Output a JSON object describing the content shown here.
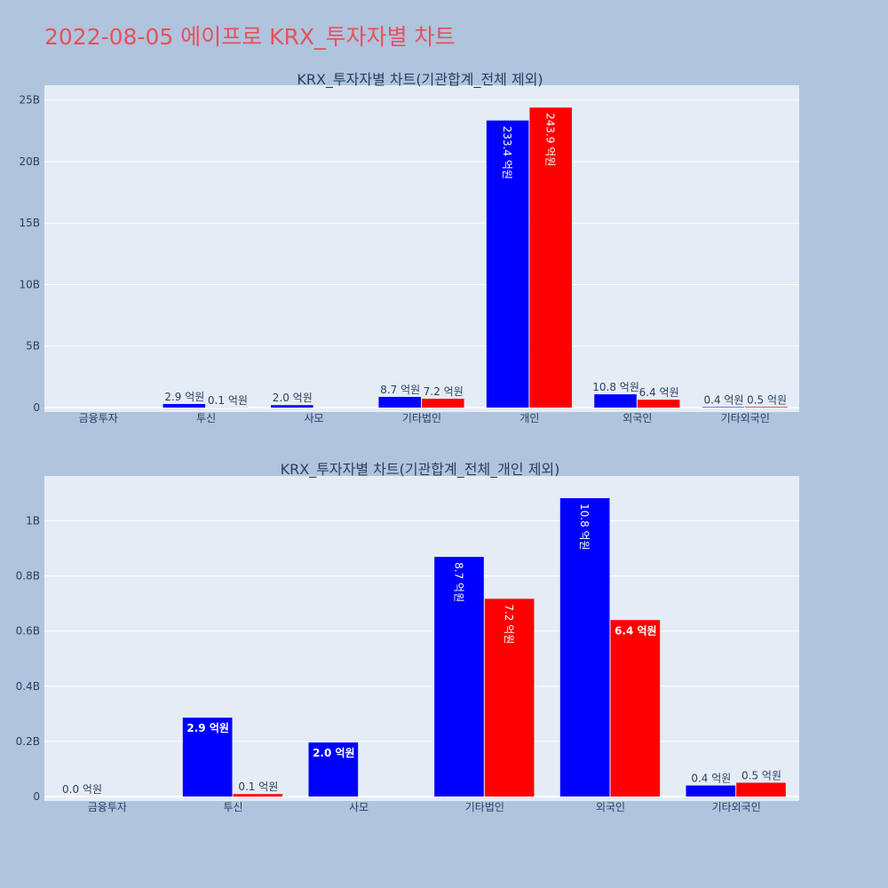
{
  "page_title": "2022-08-05 에이프로 KRX_투자자별 차트",
  "colors": {
    "background": "#b0c4de",
    "plot_bg": "#e5ecf6",
    "title": "#e8505b",
    "series_a": "#0000ff",
    "series_b": "#ff0000"
  },
  "chart_data": [
    {
      "type": "bar",
      "title": "KRX_투자자별 차트(기관합계_전체 제외)",
      "categories": [
        "금융투자",
        "투신",
        "사모",
        "기타법인",
        "개인",
        "외국인",
        "기타외국인"
      ],
      "ylim": [
        0,
        25.7
      ],
      "y_ticks": [
        0,
        5,
        10,
        15,
        20,
        25
      ],
      "y_tick_labels": [
        "0",
        "5B",
        "10B",
        "15B",
        "20B",
        "25B"
      ],
      "grid": true,
      "legend": "none",
      "series": [
        {
          "color": "#0000ff",
          "values": [
            0,
            0.29,
            0.2,
            0.87,
            23.34,
            1.08,
            0.04
          ],
          "labels": [
            "",
            "2.9 억원",
            "2.0 억원",
            "8.7 억원",
            "233.4 억원",
            "10.8 억원",
            "0.4 억원"
          ]
        },
        {
          "color": "#ff0000",
          "values": [
            0,
            0.01,
            0,
            0.72,
            24.39,
            0.64,
            0.05
          ],
          "labels": [
            "",
            "0.1 억원",
            "",
            "7.2 억원",
            "243.9 억원",
            "6.4 억원",
            "0.5 억원"
          ]
        }
      ]
    },
    {
      "type": "bar",
      "title": "KRX_투자자별 차트(기관합계_전체_개인 제외)",
      "categories": [
        "금융투자",
        "투신",
        "사모",
        "기타법인",
        "외국인",
        "기타외국인"
      ],
      "ylim": [
        0,
        1.14
      ],
      "y_ticks": [
        0,
        0.2,
        0.4,
        0.6,
        0.8,
        1.0
      ],
      "y_tick_labels": [
        "0",
        "0.2B",
        "0.4B",
        "0.6B",
        "0.8B",
        "1B"
      ],
      "grid": true,
      "legend": "none",
      "series": [
        {
          "color": "#0000ff",
          "values": [
            0,
            0.286,
            0.196,
            0.869,
            1.082,
            0.04
          ],
          "labels": [
            "0.0 억원",
            "2.9 억원",
            "2.0 억원",
            "8.7 억원",
            "10.8 억원",
            "0.4 억원"
          ]
        },
        {
          "color": "#ff0000",
          "values": [
            0,
            0.009,
            0,
            0.717,
            0.64,
            0.05
          ],
          "labels": [
            "",
            "0.1 억원",
            "",
            "7.2 억원",
            "6.4 억원",
            "0.5 억원"
          ]
        }
      ]
    }
  ]
}
